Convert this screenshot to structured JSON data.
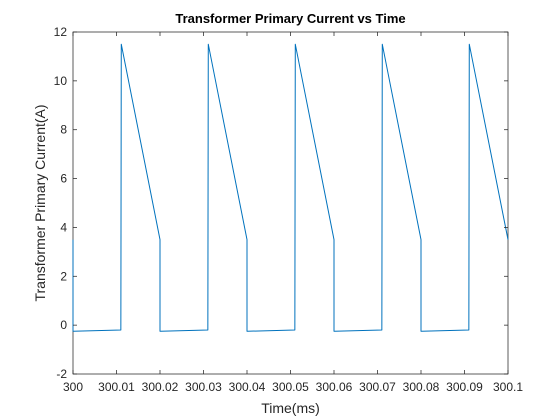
{
  "chart_data": {
    "type": "line",
    "title": "Transformer Primary Current vs Time",
    "xlabel": "Time(ms)",
    "ylabel": "Transformer Primary Current(A)",
    "xlim": [
      300,
      300.1
    ],
    "ylim": [
      -2,
      12
    ],
    "xticks": [
      300,
      300.01,
      300.02,
      300.03,
      300.04,
      300.05,
      300.06,
      300.07,
      300.08,
      300.09,
      300.1
    ],
    "xtick_labels": [
      "300",
      "300.01",
      "300.02",
      "300.03",
      "300.04",
      "300.05",
      "300.06",
      "300.07",
      "300.08",
      "300.09",
      "300.1"
    ],
    "yticks": [
      -2,
      0,
      2,
      4,
      6,
      8,
      10,
      12
    ],
    "ytick_labels": [
      "-2",
      "0",
      "2",
      "4",
      "6",
      "8",
      "10",
      "12"
    ],
    "grid": false,
    "series": [
      {
        "color": "#0072bd",
        "x": [
          300.0,
          300.0,
          300.0,
          300.011,
          300.0111,
          300.02,
          300.02,
          300.0201,
          300.031,
          300.0311,
          300.04,
          300.04,
          300.0401,
          300.051,
          300.0511,
          300.06,
          300.06,
          300.0601,
          300.071,
          300.0711,
          300.08,
          300.08,
          300.0801,
          300.091,
          300.0911,
          300.1
        ],
        "y": [
          3.5,
          -0.25,
          -0.25,
          -0.2,
          11.5,
          3.5,
          -0.25,
          -0.25,
          -0.2,
          11.5,
          3.5,
          -0.25,
          -0.25,
          -0.2,
          11.5,
          3.5,
          -0.25,
          -0.25,
          -0.2,
          11.5,
          3.5,
          -0.25,
          -0.25,
          -0.2,
          11.5,
          3.5
        ]
      }
    ]
  }
}
